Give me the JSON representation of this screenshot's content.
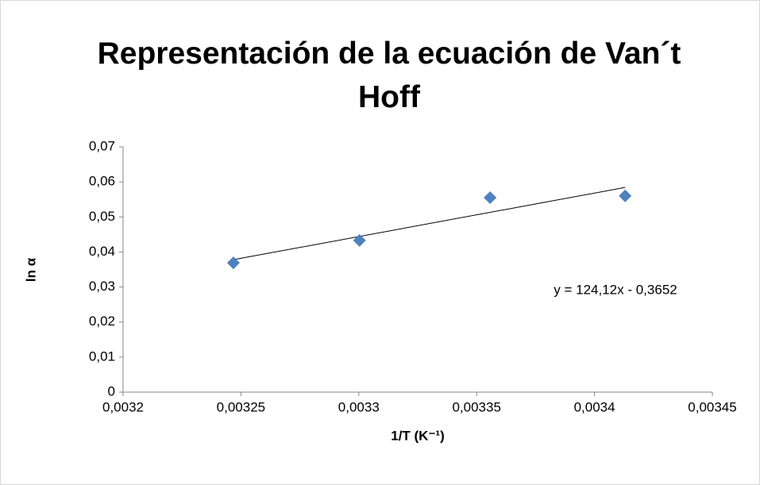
{
  "chart_data": {
    "type": "scatter",
    "title": "Representación de la ecuación de Van´t Hoff",
    "x_label": "1/T  (K⁻¹)",
    "y_label": "ln α",
    "series": [
      {
        "name": "ln α",
        "color": "#4f81bd",
        "x": [
          0.0032468,
          0.0033003,
          0.0033557,
          0.003413
        ],
        "values": [
          0.0369,
          0.0433,
          0.0555,
          0.056
        ]
      }
    ],
    "trendline": {
      "slope": 124.12,
      "intercept": -0.3652,
      "label": "y = 124,12x - 0,3652"
    },
    "xlim": [
      0.0032,
      0.00345
    ],
    "xticks": [
      {
        "value": 0.0032,
        "label": "0,0032"
      },
      {
        "value": 0.00325,
        "label": "0,00325"
      },
      {
        "value": 0.0033,
        "label": "0,0033"
      },
      {
        "value": 0.00335,
        "label": "0,00335"
      },
      {
        "value": 0.0034,
        "label": "0,0034"
      },
      {
        "value": 0.00345,
        "label": "0,00345"
      }
    ],
    "ylim": [
      0,
      0.07
    ],
    "yticks": [
      0,
      {
        "value": 0.01,
        "label": "0,01"
      },
      {
        "value": 0.02,
        "label": "0,02"
      },
      {
        "value": 0.03,
        "label": "0,03"
      },
      {
        "value": 0.04,
        "label": "0,04"
      },
      {
        "value": 0.05,
        "label": "0,05"
      },
      {
        "value": 0.06,
        "label": "0,06"
      },
      {
        "value": 0.07,
        "label": "0,07"
      }
    ],
    "grid": false
  }
}
